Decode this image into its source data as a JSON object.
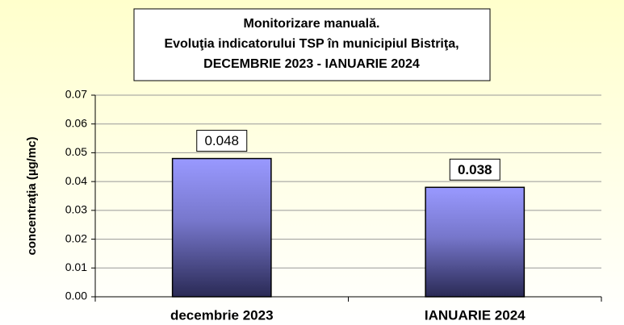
{
  "chart_data": {
    "type": "bar",
    "title": [
      "Monitorizare manuală.",
      "Evoluţia indicatorului TSP în municipiul Bistriţa,",
      "DECEMBRIE 2023 - IANUARIE 2024"
    ],
    "y_label": "concentraţia (µg/mc)",
    "categories": [
      "decembrie 2023",
      "IANUARIE 2024"
    ],
    "values": [
      0.048,
      0.038
    ],
    "color": "#9999ff",
    "ylim": [
      0,
      0.07
    ],
    "yticks": [
      {
        "value": 0,
        "label": "0.00"
      },
      0.01,
      0.02,
      0.03,
      0.04,
      0.05,
      0.06,
      0.07
    ],
    "grid": true
  }
}
